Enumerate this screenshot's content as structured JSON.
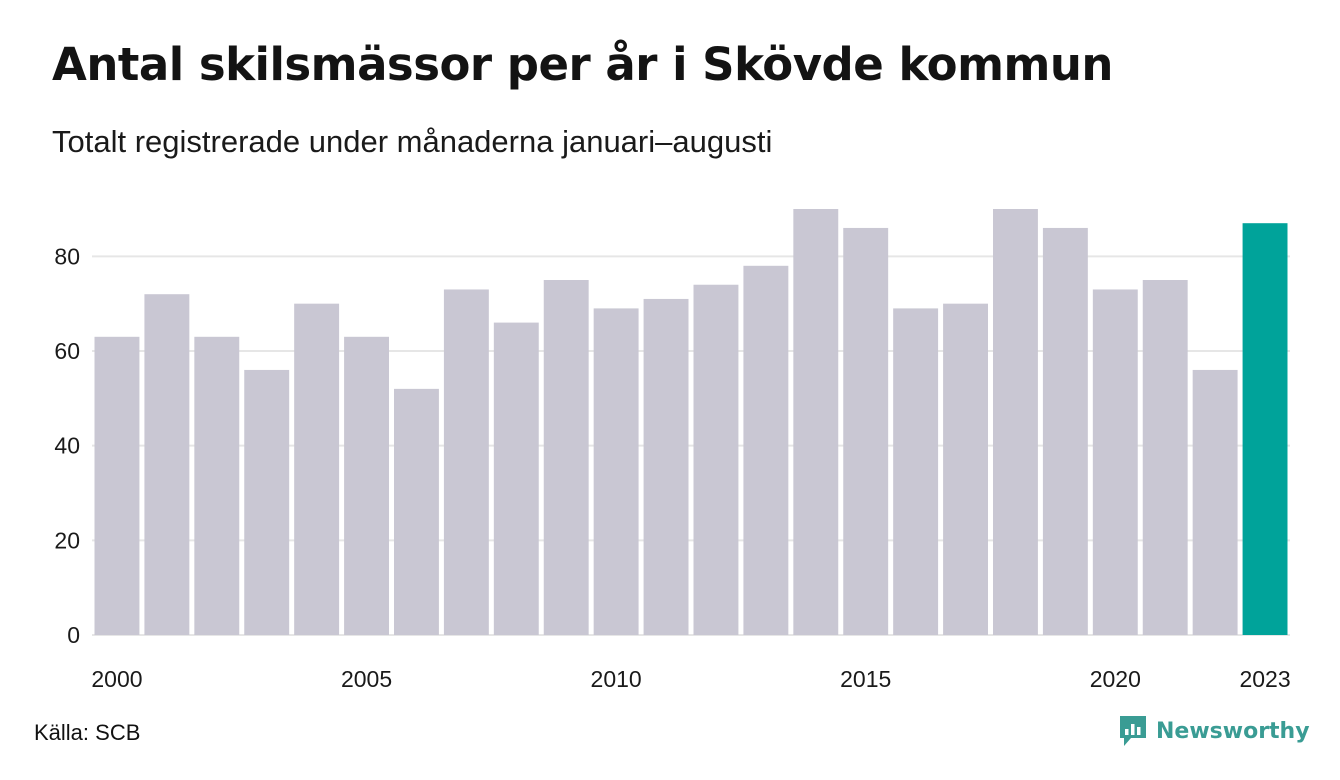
{
  "header": {
    "title": "Antal skilsmässor per år i Skövde kommun",
    "subtitle": "Totalt registrerade under månaderna januari–augusti"
  },
  "footer": {
    "source": "Källa: SCB",
    "brand_name": "Newsworthy",
    "brand_icon": "newsworthy-logo-icon"
  },
  "colors": {
    "bar": "#c9c7d3",
    "highlight": "#00a39a",
    "grid": "#e6e6e6",
    "brand": "#3a9c94"
  },
  "chart_data": {
    "type": "bar",
    "title": "Antal skilsmässor per år i Skövde kommun",
    "subtitle": "Totalt registrerade under månaderna januari–augusti",
    "categories": [
      "2000",
      "2001",
      "2002",
      "2003",
      "2004",
      "2005",
      "2006",
      "2007",
      "2008",
      "2009",
      "2010",
      "2011",
      "2012",
      "2013",
      "2014",
      "2015",
      "2016",
      "2017",
      "2018",
      "2019",
      "2020",
      "2021",
      "2022",
      "2023"
    ],
    "values": [
      63,
      72,
      63,
      56,
      70,
      63,
      52,
      73,
      66,
      75,
      69,
      71,
      74,
      78,
      90,
      86,
      69,
      70,
      90,
      86,
      73,
      75,
      56,
      87
    ],
    "highlight_category": "2023",
    "x_tick_labels": [
      "2000",
      "2005",
      "2010",
      "2015",
      "2020",
      "2023"
    ],
    "y_ticks": [
      0,
      20,
      40,
      60,
      80
    ],
    "ylim": [
      0,
      90
    ],
    "xlabel": "",
    "ylabel": "",
    "grid": true,
    "legend": false
  }
}
